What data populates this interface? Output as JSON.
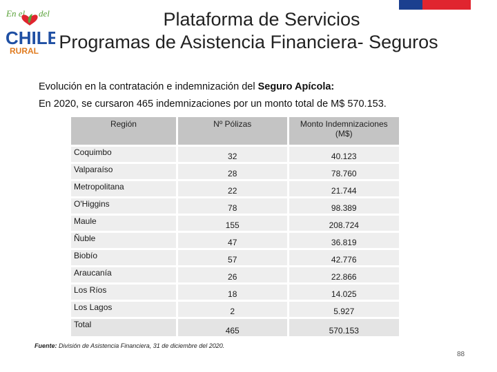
{
  "logo": {
    "top_text": "En el",
    "top_text_right": "del",
    "main_text": "CHILE",
    "bottom_text": "RURAL"
  },
  "header": {
    "title_line1": "Plataforma de Servicios",
    "title_line2": "Programas de Asistencia Financiera- Seguros"
  },
  "intro": {
    "line1_prefix": "Evolución en la contratación e indemnización del ",
    "line1_bold": "Seguro Apícola:",
    "line2": "En 2020, se cursaron 465 indemnizaciones por un monto total de M$ 570.153."
  },
  "table": {
    "headers": [
      "Región",
      "Nº Pólizas",
      "Monto Indemnizaciones (M$)"
    ],
    "rows": [
      [
        "Coquimbo",
        "32",
        "40.123"
      ],
      [
        "Valparaíso",
        "28",
        "78.760"
      ],
      [
        "Metropolitana",
        "22",
        "21.744"
      ],
      [
        "O'Higgins",
        "78",
        "98.389"
      ],
      [
        "Maule",
        "155",
        "208.724"
      ],
      [
        "Ñuble",
        "47",
        "36.819"
      ],
      [
        "Biobío",
        "57",
        "42.776"
      ],
      [
        "Araucanía",
        "26",
        "22.866"
      ],
      [
        "Los Ríos",
        "18",
        "14.025"
      ],
      [
        "Los Lagos",
        "2",
        "5.927"
      ]
    ],
    "total": [
      "Total",
      "465",
      "570.153"
    ]
  },
  "source": {
    "label": "Fuente:",
    "text": " División de Asistencia Financiera, 31 de diciembre del 2020."
  },
  "page_number": "88",
  "colors": {
    "flag_blue": "#1b3f8f",
    "flag_red": "#e0252f",
    "logo_blue": "#1f4fa3",
    "logo_green": "#5aa23a",
    "logo_orange": "#e07b1f",
    "header_gray": "#c4c4c4",
    "cell_gray": "#eeeeee"
  }
}
